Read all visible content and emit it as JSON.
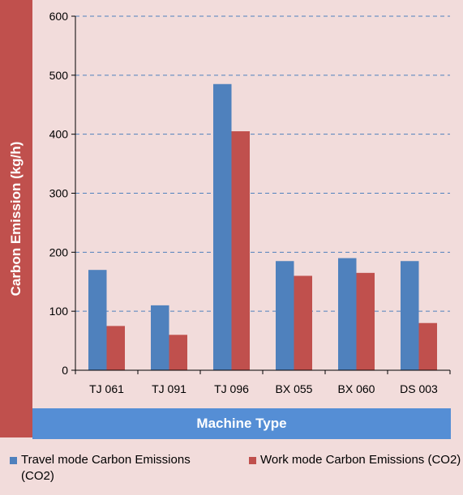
{
  "chart_data": {
    "type": "bar",
    "categories": [
      "TJ 061",
      "TJ 091",
      "TJ 096",
      "BX 055",
      "BX 060",
      "DS 003"
    ],
    "series": [
      {
        "name": "Travel mode Carbon Emissions (CO2)",
        "color": "#4f81bd",
        "values": [
          170,
          110,
          485,
          185,
          190,
          185
        ]
      },
      {
        "name": "Work mode Carbon Emissions (CO2)",
        "color": "#c0504d",
        "values": [
          75,
          60,
          405,
          160,
          165,
          80
        ]
      }
    ],
    "xlabel": "Machine Type",
    "ylabel": "Carbon Emission (kg/h)",
    "ylim": [
      0,
      600
    ],
    "yticks": [
      0,
      100,
      200,
      300,
      400,
      500,
      600
    ],
    "gridlines": "dashed",
    "legend_position": "bottom"
  }
}
